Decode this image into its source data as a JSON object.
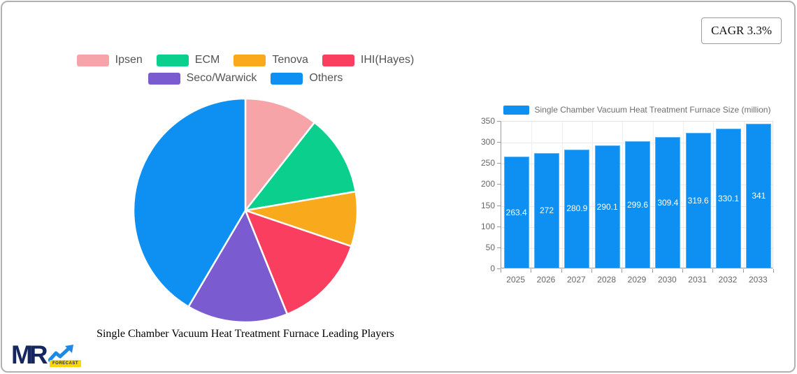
{
  "card": {
    "cagr_label": "CAGR 3.3%"
  },
  "logo": {
    "text": "MR",
    "badge": "FORECAST"
  },
  "colors": {
    "bar_blue": "#0d90f2",
    "card_border": "#b1b1b1",
    "grid": "#e8e8e8",
    "axis": "#999999",
    "tick_text": "#666666",
    "legend_text": "#545454"
  },
  "chart_data": [
    {
      "type": "pie",
      "title": "Single Chamber Vacuum Heat Treatment Furnace Leading Players",
      "legend_position": "top",
      "labels": [
        "Ipsen",
        "ECM",
        "Tenova",
        "IHI(Hayes)",
        "Seco/Warwick",
        "Others"
      ],
      "legend_rows": [
        [
          0,
          1,
          2,
          3
        ],
        [
          4,
          5
        ]
      ],
      "values_percent": [
        10.6,
        11.7,
        7.9,
        13.7,
        14.6,
        41.5
      ],
      "colors": [
        "#f7a4a9",
        "#0bd08d",
        "#f9a91c",
        "#f93e5f",
        "#7a5bd0",
        "#0d90f2"
      ],
      "start_angle_deg": 0,
      "clockwise": true
    },
    {
      "type": "bar",
      "legend": "Single Chamber Vacuum Heat Treatment Furnace Size (million)",
      "categories": [
        "2025",
        "2026",
        "2027",
        "2028",
        "2029",
        "2030",
        "2031",
        "2032",
        "2033"
      ],
      "values": [
        263.4,
        272,
        280.9,
        290.1,
        299.6,
        309.4,
        319.6,
        330.1,
        341
      ],
      "bar_color": "#0d90f2",
      "ylim": [
        0,
        350
      ],
      "yticks": [
        0,
        50,
        100,
        150,
        200,
        250,
        300,
        350
      ],
      "grid": true,
      "value_labels": "inside-middle",
      "legend_position": "top"
    }
  ]
}
